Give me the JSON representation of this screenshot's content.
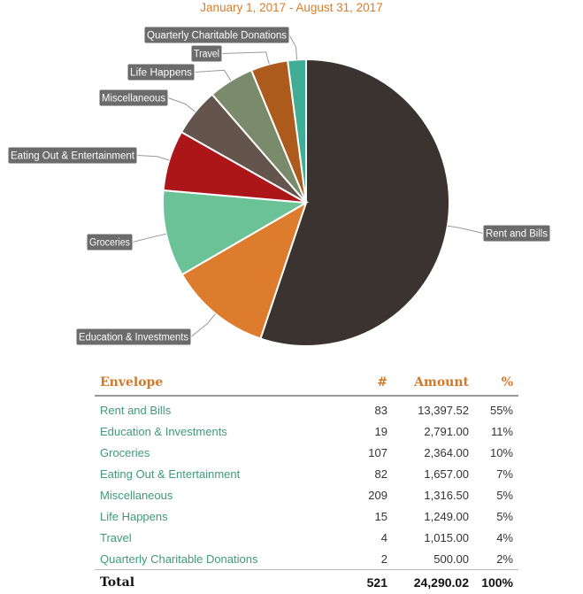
{
  "header": {
    "date_range": "January 1, 2017 - August 31, 2017"
  },
  "chart_data": {
    "type": "pie",
    "slices": [
      {
        "label": "Rent and Bills",
        "count": 83,
        "amount": "13,397.52",
        "value": 13397.52,
        "percent": "55%",
        "color": "#3b3330"
      },
      {
        "label": "Education & Investments",
        "count": 19,
        "amount": "2,791.00",
        "value": 2791.0,
        "percent": "11%",
        "color": "#dc7c2c"
      },
      {
        "label": "Groceries",
        "count": 107,
        "amount": "2,364.00",
        "value": 2364.0,
        "percent": "10%",
        "color": "#6cc297"
      },
      {
        "label": "Eating Out & Entertainment",
        "count": 82,
        "amount": "1,657.00",
        "value": 1657.0,
        "percent": "7%",
        "color": "#ad1618"
      },
      {
        "label": "Miscellaneous",
        "count": 209,
        "amount": "1,316.50",
        "value": 1316.5,
        "percent": "5%",
        "color": "#63554c"
      },
      {
        "label": "Life Happens",
        "count": 15,
        "amount": "1,249.00",
        "value": 1249.0,
        "percent": "5%",
        "color": "#7a8b6b"
      },
      {
        "label": "Travel",
        "count": 4,
        "amount": "1,015.00",
        "value": 1015.0,
        "percent": "4%",
        "color": "#ad5b1d"
      },
      {
        "label": "Quarterly Charitable Donations",
        "count": 2,
        "amount": "500.00",
        "value": 500.0,
        "percent": "2%",
        "color": "#3fae94"
      }
    ]
  },
  "table": {
    "headers": {
      "envelope": "Envelope",
      "count": "#",
      "amount": "Amount",
      "percent": "%"
    },
    "total": {
      "label": "Total",
      "count": "521",
      "amount": "24,290.02",
      "percent": "100%"
    }
  },
  "colors": {
    "accent": "#d97c2b",
    "link": "#3f9a7a",
    "label_bg": "#6b6b6b"
  }
}
